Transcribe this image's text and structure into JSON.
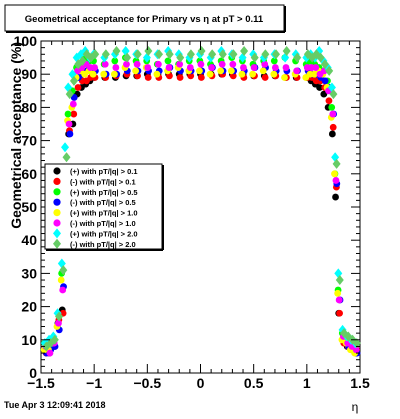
{
  "chart_data": {
    "type": "scatter",
    "title": "Geometrical acceptance for Primary vs   η at pT > 0.11",
    "xlabel": "η",
    "ylabel": "Geometrical acceptance (%)",
    "xlim": [
      -1.5,
      1.5
    ],
    "ylim": [
      0,
      100
    ],
    "x_ticks": [
      "−1.5",
      "−1",
      "−0.5",
      "0",
      "0.5",
      "1",
      "1.5"
    ],
    "y_ticks": [
      "0",
      "10",
      "20",
      "30",
      "40",
      "50",
      "60",
      "70",
      "80",
      "90",
      "100"
    ],
    "legend_position": "left-middle",
    "grid": false,
    "series": [
      {
        "name": "(+) with pT/|q| > 0.1",
        "color": "#000000",
        "marker": "circle"
      },
      {
        "name": "(-) with pT/|q| > 0.1",
        "color": "#ff0000",
        "marker": "circle"
      },
      {
        "name": "(+) with pT/|q| > 0.5",
        "color": "#00ff00",
        "marker": "circle"
      },
      {
        "name": "(-) with pT/|q| > 0.5",
        "color": "#0000ff",
        "marker": "circle"
      },
      {
        "name": "(+) with pT/|q| > 1.0",
        "color": "#ffff00",
        "marker": "circle"
      },
      {
        "name": "(-) with pT/|q| > 1.0",
        "color": "#ff00ff",
        "marker": "circle"
      },
      {
        "name": "(+) with pT/|q| > 2.0",
        "color": "#00ffff",
        "marker": "diamond"
      },
      {
        "name": "(-) with pT/|q| > 2.0",
        "color": "#66cc66",
        "marker": "diamond"
      }
    ],
    "profile": {
      "x": [
        -1.46,
        -1.42,
        -1.38,
        -1.34,
        -1.3,
        -1.27,
        -1.24,
        -1.2,
        -1.16,
        -1.12,
        -1.08,
        -1.04,
        -1.0,
        -0.9,
        -0.8,
        -0.7,
        -0.6,
        -0.5,
        -0.4,
        -0.3,
        -0.2,
        -0.1,
        0.0,
        0.1,
        0.2,
        0.3,
        0.4,
        0.5,
        0.6,
        0.7,
        0.8,
        0.9,
        1.0,
        1.04,
        1.08,
        1.12,
        1.16,
        1.2,
        1.24,
        1.27,
        1.3,
        1.34,
        1.38,
        1.42,
        1.46
      ],
      "series_y": [
        [
          7,
          6,
          9,
          15,
          19,
          55,
          72,
          75,
          84,
          86,
          87,
          88,
          89,
          89,
          89,
          89.5,
          89.5,
          90,
          90,
          90,
          90,
          90,
          90,
          90,
          90,
          90,
          90,
          89.5,
          89.5,
          89.5,
          89,
          89,
          89,
          88,
          87,
          86,
          84,
          80,
          72,
          53,
          18,
          10,
          8,
          7,
          6
        ],
        [
          6,
          7,
          8,
          16,
          18,
          55,
          73,
          78,
          86,
          88,
          88,
          89,
          89,
          89,
          89.5,
          90,
          89.5,
          89,
          89,
          89.5,
          89,
          89.5,
          89,
          89.5,
          90,
          89.5,
          89,
          89.5,
          89,
          89.5,
          89,
          89,
          89,
          89,
          88,
          88,
          86,
          82,
          74,
          56,
          18,
          9,
          8,
          7,
          7
        ],
        [
          9,
          8,
          10,
          14,
          30,
          58,
          78,
          85,
          92,
          93,
          95,
          94,
          94,
          93,
          94,
          95,
          94,
          94,
          93,
          94,
          93,
          94,
          94,
          93,
          94,
          95,
          94,
          93,
          94,
          94,
          95,
          94,
          93,
          94,
          93,
          92,
          91,
          88,
          80,
          60,
          25,
          12,
          10,
          9,
          8
        ],
        [
          6,
          7,
          8,
          13,
          26,
          61,
          72,
          83,
          89,
          90,
          91,
          91,
          91,
          90,
          90,
          91,
          91,
          91,
          91,
          92,
          91,
          91,
          91,
          92,
          91,
          91,
          91,
          92,
          92,
          91,
          91,
          91,
          91,
          90,
          90,
          89,
          88,
          86,
          78,
          57,
          22,
          10,
          8,
          7,
          6
        ],
        [
          7,
          7,
          9,
          14,
          28,
          60,
          76,
          80,
          89,
          91,
          90,
          91,
          90,
          90,
          90,
          92,
          91,
          92,
          90,
          91,
          92,
          91,
          91,
          90,
          91,
          91,
          90,
          90,
          91,
          90,
          89,
          90,
          89,
          90,
          90,
          91,
          90,
          86,
          77,
          60,
          24,
          10,
          9,
          7,
          6
        ],
        [
          8,
          6,
          9,
          15,
          25,
          57,
          75,
          81,
          91,
          92,
          93,
          92,
          92,
          93,
          92,
          93,
          93,
          92,
          93,
          92,
          93,
          92,
          93,
          92,
          93,
          93,
          92,
          92,
          93,
          92,
          92,
          91,
          92,
          92,
          92,
          90,
          91,
          85,
          78,
          58,
          22,
          11,
          9,
          8,
          7
        ],
        [
          9,
          10,
          11,
          18,
          33,
          68,
          86,
          90,
          95,
          96,
          97,
          95,
          96,
          95,
          96,
          97,
          96,
          95,
          96,
          97,
          96,
          95,
          96,
          95,
          97,
          96,
          95,
          96,
          95,
          96,
          95,
          96,
          95,
          96,
          95,
          97,
          94,
          92,
          86,
          65,
          30,
          13,
          11,
          10,
          9
        ],
        [
          8,
          9,
          10,
          17,
          31,
          65,
          84,
          88,
          93,
          94,
          96,
          95,
          96,
          96,
          97,
          95,
          96,
          97,
          96,
          96,
          95,
          96,
          97,
          96,
          96,
          96,
          97,
          95,
          96,
          96,
          97,
          95,
          96,
          95,
          96,
          95,
          93,
          91,
          84,
          63,
          28,
          12,
          11,
          10,
          9
        ]
      ]
    }
  },
  "footer": {
    "timestamp": "Tue Apr  3 12:09:41 2018"
  }
}
